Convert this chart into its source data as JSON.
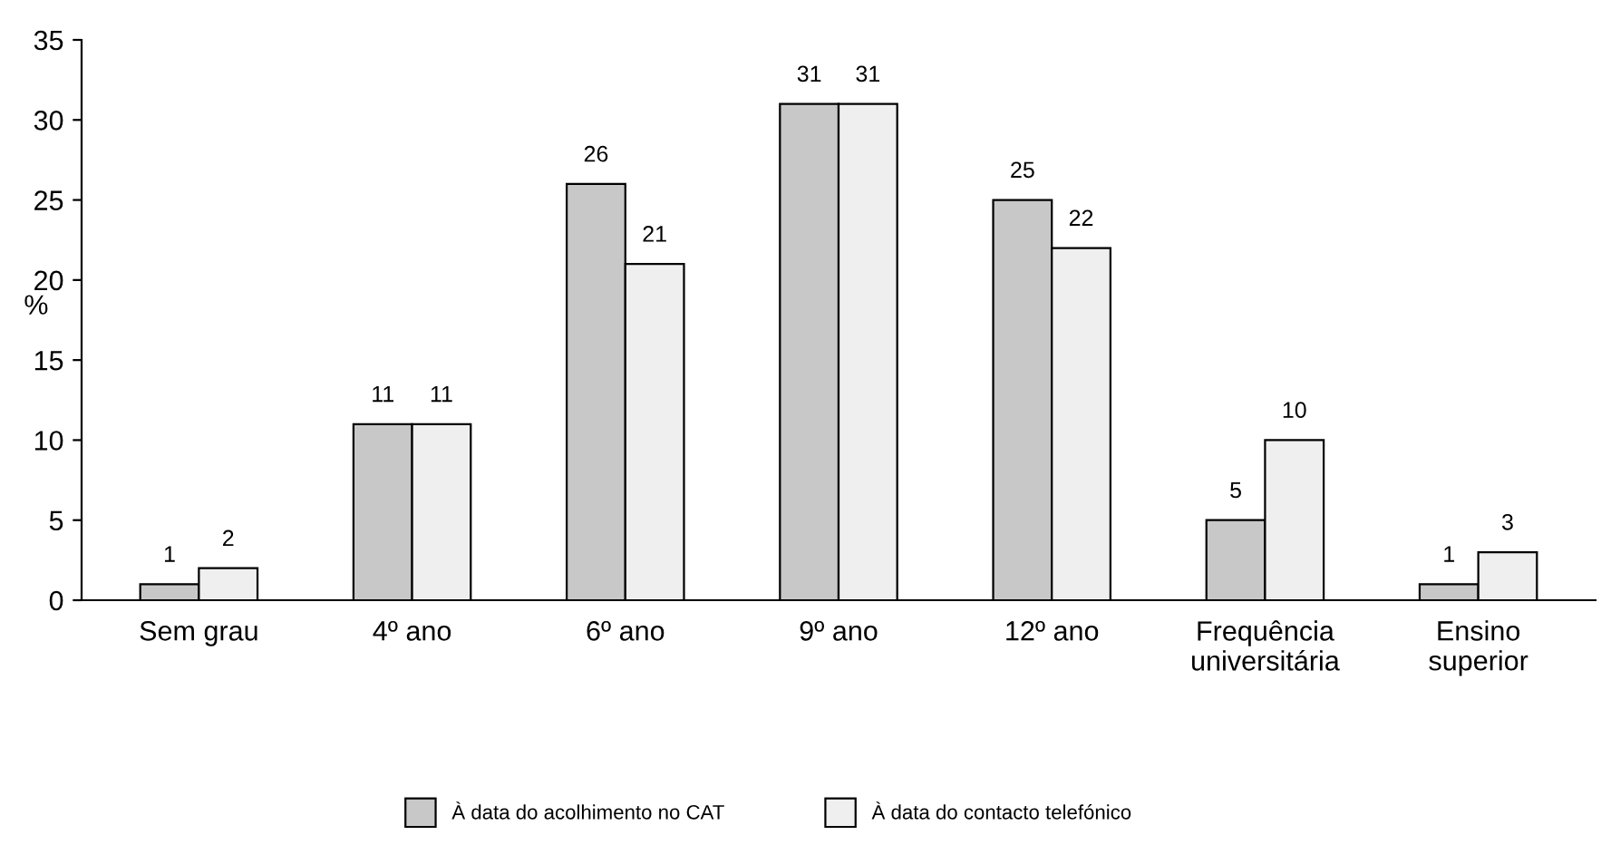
{
  "chart_data": {
    "type": "bar",
    "ylabel": "%",
    "categories": [
      "Sem grau",
      "4º ano",
      "6º ano",
      "9º ano",
      "12º ano",
      "Frequência\nuniversitária",
      "Ensino\nsuperior"
    ],
    "series": [
      {
        "name": "À data do acolhimento no CAT",
        "color": "#c8c8c8",
        "values": [
          1,
          11,
          26,
          31,
          25,
          5,
          1
        ]
      },
      {
        "name": "À data do contacto telefónico",
        "color": "#efefef",
        "values": [
          2,
          11,
          21,
          31,
          22,
          10,
          3
        ]
      }
    ],
    "ylim": [
      0,
      35
    ],
    "yticks": [
      0,
      5,
      10,
      15,
      20,
      25,
      30,
      35
    ],
    "grid": false,
    "legend": "bottom",
    "data_labels": true
  }
}
